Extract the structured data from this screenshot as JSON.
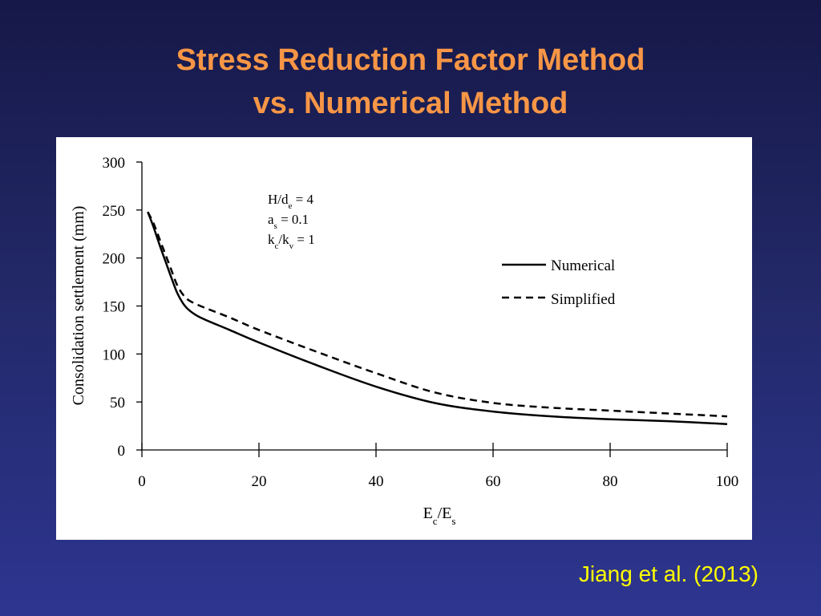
{
  "slide": {
    "title_line1": "Stress Reduction Factor Method",
    "title_line2": "vs. Numerical Method",
    "citation": "Jiang et al. (2013)",
    "colors": {
      "title": "#f79646",
      "citation": "#ffff00",
      "background_top": "#161848",
      "background_bottom": "#2d3590",
      "panel": "#ffffff"
    }
  },
  "chart_data": {
    "type": "line",
    "title": "",
    "xlabel": {
      "base": "E",
      "sub": "c",
      "mid": "/E",
      "sub2": "s"
    },
    "ylabel": "Consolidation settlement (mm)",
    "xlim": [
      0,
      100
    ],
    "ylim": [
      0,
      300
    ],
    "xticks": [
      0,
      20,
      40,
      60,
      80,
      100
    ],
    "yticks": [
      0,
      50,
      100,
      150,
      200,
      250,
      300
    ],
    "grid": false,
    "legend_position": "right",
    "annotation": [
      {
        "base": "H/d",
        "sub": "e",
        "rest": " = 4"
      },
      {
        "base": "a",
        "sub": "s",
        "rest": " = 0.1"
      },
      {
        "base": "k",
        "sub": "c",
        "mid": "/k",
        "sub2": "v",
        "rest": " = 1"
      }
    ],
    "series": [
      {
        "name": "Numerical",
        "style": "solid",
        "x": [
          1,
          2,
          3,
          4,
          5,
          6,
          7,
          8,
          10,
          15,
          20,
          30,
          40,
          50,
          60,
          70,
          80,
          90,
          100
        ],
        "y": [
          248,
          232,
          214,
          197,
          180,
          164,
          153,
          146,
          138,
          125,
          112,
          88,
          66,
          49,
          40,
          35,
          32,
          30,
          27
        ]
      },
      {
        "name": "Simplified",
        "style": "dashed",
        "x": [
          1,
          2,
          3,
          4,
          5,
          6,
          7,
          8,
          10,
          15,
          20,
          30,
          40,
          50,
          60,
          70,
          80,
          90,
          100
        ],
        "y": [
          248,
          236,
          220,
          204,
          188,
          172,
          162,
          156,
          150,
          138,
          125,
          102,
          80,
          60,
          49,
          44,
          41,
          38,
          35
        ]
      }
    ]
  }
}
